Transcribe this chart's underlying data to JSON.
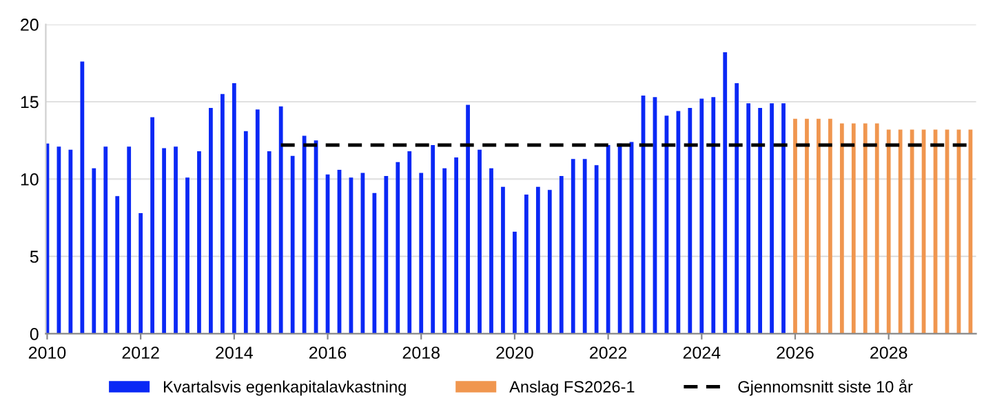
{
  "chart_data": {
    "type": "bar",
    "series": [
      {
        "name": "Kvartalsvis egenkapitalavkastning",
        "color": "#0a28f5",
        "x": [
          2010,
          2010.25,
          2010.5,
          2010.75,
          2011,
          2011.25,
          2011.5,
          2011.75,
          2012,
          2012.25,
          2012.5,
          2012.75,
          2013,
          2013.25,
          2013.5,
          2013.75,
          2014,
          2014.25,
          2014.5,
          2014.75,
          2015,
          2015.25,
          2015.5,
          2015.75,
          2016,
          2016.25,
          2016.5,
          2016.75,
          2017,
          2017.25,
          2017.5,
          2017.75,
          2018,
          2018.25,
          2018.5,
          2018.75,
          2019,
          2019.25,
          2019.5,
          2019.75,
          2020,
          2020.25,
          2020.5,
          2020.75,
          2021,
          2021.25,
          2021.5,
          2021.75,
          2022,
          2022.25,
          2022.5,
          2022.75,
          2023,
          2023.25,
          2023.5,
          2023.75,
          2024,
          2024.25,
          2024.5,
          2024.75,
          2025,
          2025.25,
          2025.5,
          2025.75
        ],
        "values": [
          12.3,
          12.1,
          11.9,
          17.6,
          10.7,
          12.1,
          8.9,
          12.1,
          7.8,
          14.0,
          12.0,
          12.1,
          10.1,
          11.8,
          14.6,
          15.5,
          16.2,
          13.1,
          14.5,
          11.8,
          14.7,
          11.5,
          12.8,
          12.5,
          10.3,
          10.6,
          10.1,
          10.4,
          9.1,
          10.2,
          11.1,
          11.8,
          10.4,
          12.2,
          10.7,
          11.4,
          14.8,
          11.9,
          10.7,
          9.5,
          6.6,
          9.0,
          9.5,
          9.3,
          10.2,
          11.3,
          11.3,
          10.9,
          12.2,
          12.3,
          12.4,
          15.4,
          15.3,
          14.1,
          14.4,
          14.6,
          15.2,
          15.3,
          18.2,
          16.2,
          14.9,
          14.6,
          14.9,
          14.9
        ]
      },
      {
        "name": "Anslag FS2026-1",
        "color": "#f0964f",
        "x": [
          2026,
          2026.25,
          2026.5,
          2026.75,
          2027,
          2027.25,
          2027.5,
          2027.75,
          2028,
          2028.25,
          2028.5,
          2028.75,
          2029,
          2029.25,
          2029.5,
          2029.75
        ],
        "values": [
          13.9,
          13.9,
          13.9,
          13.9,
          13.6,
          13.6,
          13.6,
          13.6,
          13.2,
          13.2,
          13.2,
          13.2,
          13.2,
          13.2,
          13.2,
          13.2
        ]
      },
      {
        "name": "Gjennomsnitt siste 10 år",
        "color": "#000000",
        "type": "line",
        "line_style": "dashed",
        "marker": "none",
        "x": [
          2015,
          2029.75
        ],
        "values": [
          12.2,
          12.2
        ]
      }
    ],
    "xlim": [
      2009.97,
      2029.87
    ],
    "xticks": [
      2010,
      2012,
      2014,
      2016,
      2018,
      2020,
      2022,
      2024,
      2026,
      2028
    ],
    "ylim": [
      0,
      20
    ],
    "yticks": [
      0,
      5,
      10,
      15,
      20
    ],
    "grid": "y",
    "legend": "bottom"
  }
}
